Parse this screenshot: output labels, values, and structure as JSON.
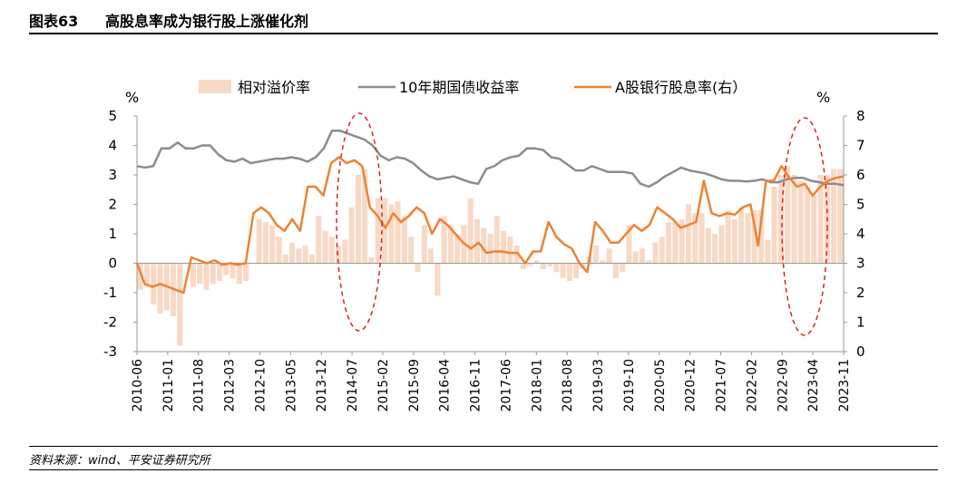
{
  "figure": {
    "number": "图表63",
    "title": "高股息率成为银行股上涨催化剂",
    "source": "资料来源：wind、平安证券研究所"
  },
  "chart_data": {
    "type": "bar+line",
    "left_unit": "%",
    "right_unit": "%",
    "left_ylim": [
      -3,
      5
    ],
    "right_ylim": [
      0,
      8
    ],
    "left_ticks": [
      "5",
      "4",
      "3",
      "2",
      "1",
      "0",
      "-1",
      "-2",
      "-3"
    ],
    "right_ticks": [
      "8",
      "7",
      "6",
      "5",
      "4",
      "3",
      "2",
      "1",
      "0"
    ],
    "x_tick_labels": [
      "2010-06",
      "2011-01",
      "2011-08",
      "2012-03",
      "2012-10",
      "2013-05",
      "2013-12",
      "2014-07",
      "2015-02",
      "2015-09",
      "2016-04",
      "2016-11",
      "2017-06",
      "2018-01",
      "2018-08",
      "2019-03",
      "2019-10",
      "2020-05",
      "2020-12",
      "2021-07",
      "2022-02",
      "2022-09",
      "2023-04",
      "2023-11"
    ],
    "legend": [
      "相对溢价率",
      "10年期国债收益率",
      "A股银行股息率(右）"
    ],
    "colors": {
      "premium_bar": "#f8d9c6",
      "bond_line": "#8c8c8c",
      "dividend_line": "#ee8233",
      "ellipse": "#e02020"
    },
    "series": [
      {
        "name": "相对溢价率",
        "type": "bar",
        "axis": "left",
        "values": [
          -0.9,
          -0.8,
          -1.4,
          -1.7,
          -1.6,
          -1.8,
          -2.8,
          0.0,
          -0.8,
          -0.7,
          -0.9,
          -0.7,
          -0.6,
          -0.4,
          -0.5,
          -0.7,
          -0.6,
          0.0,
          1.5,
          1.4,
          1.3,
          0.9,
          0.3,
          0.7,
          0.5,
          0.6,
          0.3,
          1.6,
          1.1,
          0.9,
          0.6,
          0.8,
          1.9,
          3.0,
          3.2,
          0.2,
          2.2,
          2.2,
          2.0,
          2.1,
          1.6,
          0.9,
          -0.3,
          1.3,
          0.5,
          -1.1,
          1.6,
          1.3,
          1.0,
          1.3,
          2.2,
          1.5,
          1.2,
          1.0,
          1.6,
          1.1,
          0.9,
          0.6,
          -0.2,
          -0.1,
          0.1,
          -0.2,
          -0.1,
          -0.3,
          -0.5,
          -0.6,
          -0.5,
          -0.2,
          0.2,
          0.6,
          0.1,
          0.5,
          -0.5,
          -0.3,
          1.3,
          0.4,
          0.5,
          0.1,
          0.7,
          0.9,
          1.4,
          1.4,
          1.5,
          2.0,
          1.7,
          1.7,
          1.2,
          1.0,
          1.3,
          1.8,
          1.5,
          1.9,
          1.7,
          1.8,
          1.8,
          0.8,
          2.6,
          3.0,
          3.3,
          3.0,
          2.8,
          2.6,
          2.3,
          3.0,
          3.0,
          3.2,
          3.2
        ]
      },
      {
        "name": "10年期国债收益率",
        "type": "line",
        "axis": "left",
        "values": [
          3.3,
          3.25,
          3.3,
          3.9,
          3.9,
          4.1,
          3.9,
          3.9,
          4.0,
          4.0,
          3.7,
          3.5,
          3.45,
          3.55,
          3.4,
          3.45,
          3.5,
          3.55,
          3.55,
          3.6,
          3.55,
          3.45,
          3.6,
          3.9,
          4.5,
          4.5,
          4.4,
          4.3,
          4.2,
          4.0,
          3.65,
          3.5,
          3.6,
          3.55,
          3.4,
          3.15,
          2.95,
          2.85,
          2.9,
          2.95,
          2.85,
          2.75,
          2.7,
          3.2,
          3.3,
          3.5,
          3.6,
          3.65,
          3.9,
          3.9,
          3.85,
          3.6,
          3.55,
          3.35,
          3.15,
          3.15,
          3.3,
          3.2,
          3.1,
          3.1,
          3.1,
          3.05,
          2.7,
          2.6,
          2.75,
          2.95,
          3.1,
          3.25,
          3.15,
          3.1,
          3.05,
          2.95,
          2.85,
          2.8,
          2.8,
          2.78,
          2.8,
          2.85,
          2.75,
          2.75,
          2.85,
          2.9,
          2.9,
          2.8,
          2.75,
          2.7,
          2.7,
          2.65
        ]
      },
      {
        "name": "A股银行股息率(右）",
        "type": "line",
        "axis": "right",
        "values": [
          3.0,
          2.3,
          2.2,
          2.3,
          2.2,
          2.1,
          2.0,
          3.2,
          3.1,
          3.0,
          3.1,
          2.95,
          3.0,
          2.95,
          3.0,
          4.7,
          4.9,
          4.7,
          4.3,
          4.1,
          4.5,
          4.1,
          5.6,
          5.6,
          5.3,
          6.4,
          6.6,
          6.4,
          6.5,
          6.3,
          4.9,
          4.6,
          4.2,
          4.7,
          4.4,
          4.6,
          4.9,
          4.7,
          4.0,
          4.5,
          4.3,
          4.0,
          3.7,
          3.5,
          3.7,
          3.35,
          3.4,
          3.4,
          3.35,
          3.35,
          3.0,
          3.4,
          3.4,
          4.4,
          3.9,
          3.65,
          3.5,
          3.0,
          2.7,
          4.4,
          4.1,
          3.7,
          3.7,
          4.0,
          4.3,
          4.1,
          4.3,
          4.9,
          4.7,
          4.5,
          4.2,
          4.3,
          4.4,
          5.8,
          4.7,
          4.6,
          4.7,
          4.65,
          4.9,
          5.0,
          3.6,
          5.8,
          5.8,
          6.3,
          5.9,
          5.6,
          5.7,
          5.3,
          5.6,
          5.8,
          5.9,
          5.95
        ]
      }
    ]
  }
}
